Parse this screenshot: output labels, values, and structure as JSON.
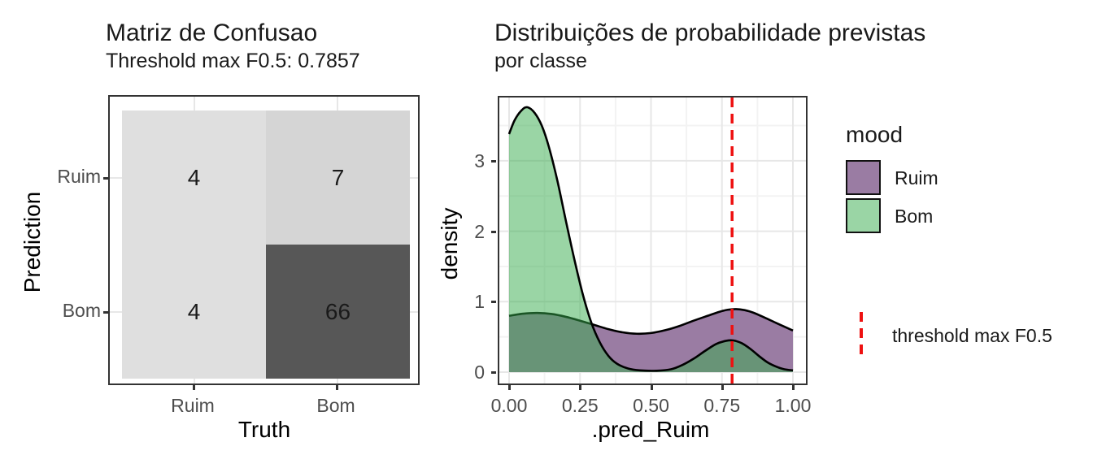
{
  "colors": {
    "ruim_fill": "#9a7ca3",
    "bom_fill": "rgba(53,171,75,0.5)",
    "bom_legend_fill": "#9ad5a5",
    "curve_stroke": "#000000",
    "threshold_red": "#ee1111",
    "grid_major": "#e7e7e7",
    "grid_minor": "#f3f3f3",
    "panel_border": "#333333",
    "tick_text": "#4d4d4d",
    "tile_light": "#dfdfdf",
    "tile_mid": "#d5d5d5",
    "tile_dark": "#575757"
  },
  "chart_data": [
    {
      "type": "heatmap",
      "title": "Matriz de Confusao",
      "subtitle": "Threshold max F0.5: 0.7857",
      "xlabel": "Truth",
      "ylabel": "Prediction",
      "x_categories": [
        "Ruim",
        "Bom"
      ],
      "y_categories": [
        "Ruim",
        "Bom"
      ],
      "cells": [
        {
          "truth": "Ruim",
          "prediction": "Ruim",
          "value": 4,
          "fill": "#dfdfdf"
        },
        {
          "truth": "Bom",
          "prediction": "Ruim",
          "value": 7,
          "fill": "#d5d5d5"
        },
        {
          "truth": "Ruim",
          "prediction": "Bom",
          "value": 4,
          "fill": "#dfdfdf"
        },
        {
          "truth": "Bom",
          "prediction": "Bom",
          "value": 66,
          "fill": "#575757"
        }
      ]
    },
    {
      "type": "area",
      "title": "Distribuições de probabilidade previstas",
      "subtitle": "por classe",
      "xlabel": ".pred_Ruim",
      "ylabel": "density",
      "xlim": [
        0,
        1
      ],
      "ylim": [
        0,
        3.9
      ],
      "x_ticks": {
        "values": [
          0,
          0.25,
          0.5,
          0.75,
          1
        ],
        "labels": [
          "0.00",
          "0.25",
          "0.50",
          "0.75",
          "1.00"
        ]
      },
      "x_minor": [
        0.125,
        0.375,
        0.625,
        0.875
      ],
      "y_ticks": {
        "values": [
          0,
          1,
          2,
          3
        ],
        "labels": [
          "0",
          "1",
          "2",
          "3"
        ]
      },
      "y_minor": [
        0.5,
        1.5,
        2.5,
        3.5
      ],
      "threshold": {
        "value": 0.7857,
        "label": "threshold max F0.5"
      },
      "legend": {
        "title": "mood",
        "entries": [
          {
            "label": "Ruim"
          },
          {
            "label": "Bom"
          }
        ]
      },
      "series": [
        {
          "name": "Ruim",
          "points": [
            [
              0,
              0.8
            ],
            [
              0.05,
              0.83
            ],
            [
              0.1,
              0.84
            ],
            [
              0.15,
              0.825
            ],
            [
              0.2,
              0.785
            ],
            [
              0.25,
              0.73
            ],
            [
              0.3,
              0.67
            ],
            [
              0.35,
              0.61
            ],
            [
              0.4,
              0.565
            ],
            [
              0.45,
              0.545
            ],
            [
              0.5,
              0.555
            ],
            [
              0.55,
              0.595
            ],
            [
              0.6,
              0.655
            ],
            [
              0.65,
              0.73
            ],
            [
              0.7,
              0.8
            ],
            [
              0.74,
              0.855
            ],
            [
              0.77,
              0.885
            ],
            [
              0.8,
              0.895
            ],
            [
              0.83,
              0.88
            ],
            [
              0.86,
              0.845
            ],
            [
              0.9,
              0.775
            ],
            [
              0.94,
              0.7
            ],
            [
              0.97,
              0.645
            ],
            [
              1,
              0.59
            ]
          ]
        },
        {
          "name": "Bom",
          "points": [
            [
              0,
              3.38
            ],
            [
              0.02,
              3.58
            ],
            [
              0.045,
              3.72
            ],
            [
              0.065,
              3.76
            ],
            [
              0.09,
              3.68
            ],
            [
              0.115,
              3.5
            ],
            [
              0.14,
              3.2
            ],
            [
              0.17,
              2.72
            ],
            [
              0.2,
              2.15
            ],
            [
              0.23,
              1.6
            ],
            [
              0.26,
              1.1
            ],
            [
              0.29,
              0.7
            ],
            [
              0.32,
              0.42
            ],
            [
              0.35,
              0.23
            ],
            [
              0.38,
              0.12
            ],
            [
              0.42,
              0.05
            ],
            [
              0.46,
              0.025
            ],
            [
              0.52,
              0.02
            ],
            [
              0.57,
              0.04
            ],
            [
              0.61,
              0.1
            ],
            [
              0.65,
              0.19
            ],
            [
              0.69,
              0.3
            ],
            [
              0.73,
              0.4
            ],
            [
              0.765,
              0.445
            ],
            [
              0.79,
              0.45
            ],
            [
              0.82,
              0.41
            ],
            [
              0.85,
              0.33
            ],
            [
              0.88,
              0.23
            ],
            [
              0.91,
              0.14
            ],
            [
              0.94,
              0.08
            ],
            [
              0.97,
              0.04
            ],
            [
              1,
              0.025
            ]
          ]
        }
      ]
    }
  ]
}
